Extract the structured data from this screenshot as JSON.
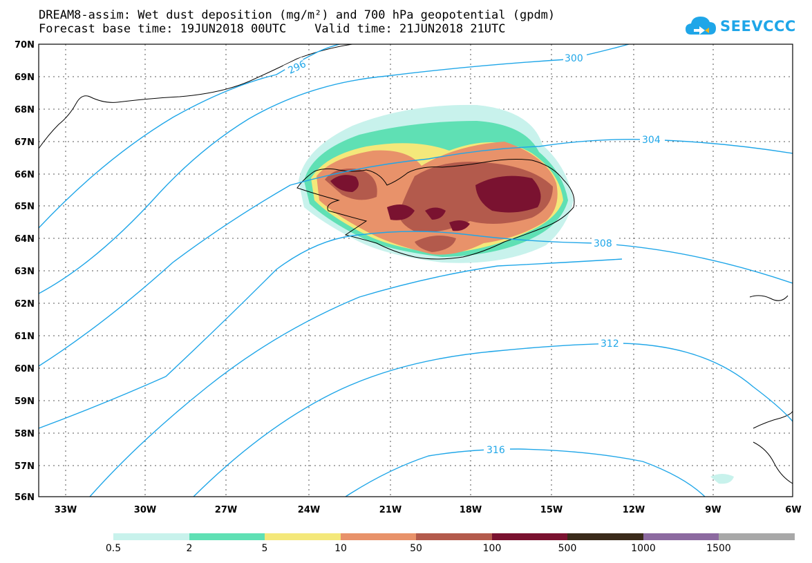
{
  "title": {
    "line1": "DREAM8-assim: Wet dust deposition (mg/m²) and 700 hPa geopotential (gpdm)",
    "line2": "Forecast base time: 19JUN2018 00UTC    Valid time: 21JUN2018 21UTC"
  },
  "logo": {
    "text": "SEEVCCC",
    "icon": "cloud-icon",
    "color": "#1fa6e8"
  },
  "axes": {
    "lon_labels": [
      "33W",
      "30W",
      "27W",
      "24W",
      "21W",
      "18W",
      "15W",
      "12W",
      "9W",
      "6W"
    ],
    "lat_labels": [
      "70N",
      "69N",
      "68N",
      "67N",
      "66N",
      "65N",
      "64N",
      "63N",
      "62N",
      "61N",
      "60N",
      "59N",
      "58N",
      "57N",
      "56N"
    ]
  },
  "contour_labels": [
    "296",
    "300",
    "304",
    "308",
    "312",
    "316"
  ],
  "colorbar": {
    "levels": [
      "0.5",
      "2",
      "5",
      "10",
      "50",
      "100",
      "500",
      "1000",
      "1500"
    ],
    "colors": [
      "#c8f2ec",
      "#5fe0b4",
      "#f4e87a",
      "#e8926a",
      "#b35a4c",
      "#7a1230",
      "#3a2a1a",
      "#8c6aa0",
      "#a8a8a8"
    ]
  },
  "contour_color": "#1fa6e8",
  "chart_data": {
    "type": "heatmap",
    "variable": "Wet dust deposition (mg/m²)",
    "overlay": "700 hPa geopotential (gpdm)",
    "xlim": [
      "34W",
      "6W"
    ],
    "ylim": [
      "56N",
      "70N"
    ],
    "contour_levels": [
      296,
      300,
      304,
      308,
      312,
      316
    ],
    "color_levels": [
      0.5,
      2,
      5,
      10,
      50,
      100,
      500,
      1000,
      1500
    ]
  }
}
